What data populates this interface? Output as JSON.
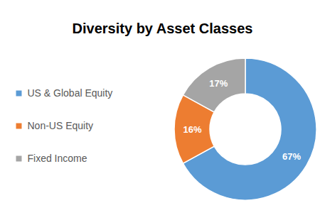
{
  "chart_data": {
    "type": "donut",
    "title": "Diversity by Asset Classes",
    "categories": [
      "US & Global Equity",
      "Non-US Equity",
      "Fixed Income"
    ],
    "values": [
      67,
      16,
      17
    ],
    "value_labels": [
      "67%",
      "16%",
      "17%"
    ],
    "colors": [
      "#5B9BD5",
      "#ED7D31",
      "#A5A5A5"
    ],
    "data_labels": true,
    "legend": "left"
  }
}
